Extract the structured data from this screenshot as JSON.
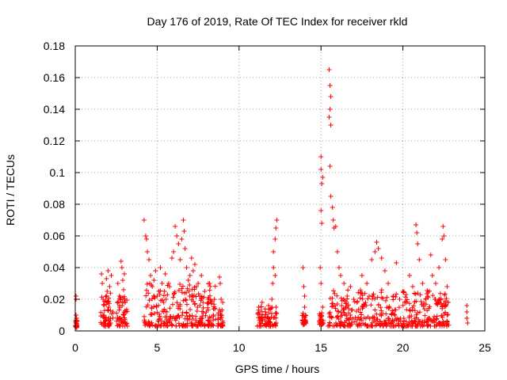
{
  "chart_data": {
    "type": "scatter",
    "title": "Day 176 of 2019, Rate Of TEC Index for receiver rkld",
    "xlabel": "GPS time / hours",
    "ylabel": "ROTI / TECUs",
    "xlim": [
      0,
      25
    ],
    "ylim": [
      0,
      0.18
    ],
    "xticks": [
      0,
      5,
      10,
      15,
      20,
      25
    ],
    "xtick_labels": [
      "0",
      "5",
      "10",
      "15",
      "20",
      "25"
    ],
    "yticks": [
      0,
      0.02,
      0.04,
      0.06,
      0.08,
      0.1,
      0.12,
      0.14,
      0.16,
      0.18
    ],
    "ytick_labels": [
      "0",
      "0.02",
      "0.04",
      "0.06",
      "0.08",
      "0.1",
      "0.12",
      "0.14",
      "0.16",
      "0.18"
    ],
    "grid": true,
    "marker": "+",
    "series": [
      {
        "name": "ROTI",
        "color": "#ff0000",
        "points": [
          [
            0.05,
            0.022
          ],
          [
            0.05,
            0.02
          ],
          [
            0.05,
            0.01
          ],
          [
            0.08,
            0.008
          ],
          [
            0.1,
            0.006
          ],
          [
            0.05,
            0.005
          ],
          [
            0.1,
            0.004
          ],
          [
            1.6,
            0.036
          ],
          [
            1.65,
            0.03
          ],
          [
            1.7,
            0.02
          ],
          [
            1.75,
            0.01
          ],
          [
            1.8,
            0.008
          ],
          [
            1.9,
            0.033
          ],
          [
            1.95,
            0.025
          ],
          [
            2.0,
            0.038
          ],
          [
            2.05,
            0.015
          ],
          [
            2.1,
            0.028
          ],
          [
            2.2,
            0.035
          ],
          [
            2.3,
            0.012
          ],
          [
            2.1,
            0.005
          ],
          [
            2.6,
            0.03
          ],
          [
            2.7,
            0.022
          ],
          [
            2.8,
            0.044
          ],
          [
            2.85,
            0.04
          ],
          [
            2.9,
            0.032
          ],
          [
            2.95,
            0.026
          ],
          [
            3.0,
            0.036
          ],
          [
            3.05,
            0.018
          ],
          [
            3.1,
            0.012
          ],
          [
            2.75,
            0.008
          ],
          [
            2.95,
            0.01
          ],
          [
            4.2,
            0.07
          ],
          [
            4.3,
            0.06
          ],
          [
            4.35,
            0.058
          ],
          [
            4.4,
            0.05
          ],
          [
            4.5,
            0.045
          ],
          [
            4.55,
            0.03
          ],
          [
            4.6,
            0.035
          ],
          [
            4.7,
            0.028
          ],
          [
            4.8,
            0.032
          ],
          [
            4.9,
            0.038
          ],
          [
            5.0,
            0.022
          ],
          [
            5.1,
            0.025
          ],
          [
            5.2,
            0.04
          ],
          [
            5.3,
            0.03
          ],
          [
            5.4,
            0.018
          ],
          [
            5.5,
            0.036
          ],
          [
            5.6,
            0.012
          ],
          [
            5.7,
            0.03
          ],
          [
            5.9,
            0.046
          ],
          [
            6.0,
            0.05
          ],
          [
            6.1,
            0.066
          ],
          [
            6.2,
            0.06
          ],
          [
            6.3,
            0.055
          ],
          [
            6.4,
            0.045
          ],
          [
            6.5,
            0.058
          ],
          [
            6.6,
            0.07
          ],
          [
            6.65,
            0.063
          ],
          [
            6.7,
            0.052
          ],
          [
            6.8,
            0.04
          ],
          [
            6.9,
            0.032
          ],
          [
            7.0,
            0.035
          ],
          [
            7.1,
            0.046
          ],
          [
            7.2,
            0.038
          ],
          [
            7.3,
            0.042
          ],
          [
            7.4,
            0.028
          ],
          [
            7.5,
            0.03
          ],
          [
            7.6,
            0.022
          ],
          [
            7.7,
            0.035
          ],
          [
            7.8,
            0.018
          ],
          [
            7.9,
            0.025
          ],
          [
            8.0,
            0.012
          ],
          [
            8.1,
            0.02
          ],
          [
            8.2,
            0.03
          ],
          [
            8.3,
            0.018
          ],
          [
            8.8,
            0.034
          ],
          [
            8.85,
            0.03
          ],
          [
            8.9,
            0.02
          ],
          [
            8.95,
            0.01
          ],
          [
            9.0,
            0.018
          ],
          [
            11.2,
            0.015
          ],
          [
            11.4,
            0.018
          ],
          [
            11.6,
            0.012
          ],
          [
            11.8,
            0.016
          ],
          [
            12.0,
            0.02
          ],
          [
            12.05,
            0.03
          ],
          [
            12.1,
            0.04
          ],
          [
            12.1,
            0.05
          ],
          [
            12.2,
            0.058
          ],
          [
            12.25,
            0.065
          ],
          [
            12.3,
            0.07
          ],
          [
            12.2,
            0.035
          ],
          [
            13.9,
            0.04
          ],
          [
            13.95,
            0.028
          ],
          [
            14.0,
            0.022
          ],
          [
            14.0,
            0.015
          ],
          [
            14.05,
            0.01
          ],
          [
            14.0,
            0.006
          ],
          [
            15.0,
            0.11
          ],
          [
            15.0,
            0.102
          ],
          [
            15.05,
            0.093
          ],
          [
            15.1,
            0.097
          ],
          [
            15.0,
            0.076
          ],
          [
            15.05,
            0.068
          ],
          [
            14.95,
            0.04
          ],
          [
            15.0,
            0.03
          ],
          [
            15.1,
            0.015
          ],
          [
            14.95,
            0.008
          ],
          [
            15.5,
            0.165
          ],
          [
            15.55,
            0.155
          ],
          [
            15.6,
            0.148
          ],
          [
            15.55,
            0.14
          ],
          [
            15.5,
            0.135
          ],
          [
            15.6,
            0.13
          ],
          [
            15.55,
            0.104
          ],
          [
            15.6,
            0.085
          ],
          [
            15.7,
            0.078
          ],
          [
            15.75,
            0.07
          ],
          [
            15.8,
            0.065
          ],
          [
            15.9,
            0.066
          ],
          [
            16.0,
            0.05
          ],
          [
            16.1,
            0.04
          ],
          [
            16.2,
            0.035
          ],
          [
            16.4,
            0.03
          ],
          [
            16.6,
            0.022
          ],
          [
            16.8,
            0.028
          ],
          [
            17.0,
            0.02
          ],
          [
            17.2,
            0.018
          ],
          [
            17.5,
            0.035
          ],
          [
            17.8,
            0.03
          ],
          [
            18.1,
            0.045
          ],
          [
            18.3,
            0.05
          ],
          [
            18.4,
            0.056
          ],
          [
            18.5,
            0.052
          ],
          [
            18.7,
            0.046
          ],
          [
            18.9,
            0.038
          ],
          [
            19.1,
            0.03
          ],
          [
            19.4,
            0.022
          ],
          [
            19.6,
            0.043
          ],
          [
            19.8,
            0.02
          ],
          [
            20.0,
            0.025
          ],
          [
            20.2,
            0.018
          ],
          [
            20.4,
            0.035
          ],
          [
            20.6,
            0.028
          ],
          [
            20.8,
            0.067
          ],
          [
            20.85,
            0.062
          ],
          [
            20.9,
            0.055
          ],
          [
            21.0,
            0.045
          ],
          [
            21.2,
            0.03
          ],
          [
            21.4,
            0.02
          ],
          [
            21.7,
            0.048
          ],
          [
            21.8,
            0.035
          ],
          [
            22.0,
            0.03
          ],
          [
            22.2,
            0.04
          ],
          [
            22.4,
            0.058
          ],
          [
            22.45,
            0.066
          ],
          [
            22.5,
            0.06
          ],
          [
            22.6,
            0.045
          ],
          [
            22.7,
            0.028
          ],
          [
            22.75,
            0.018
          ],
          [
            22.7,
            0.01
          ],
          [
            23.9,
            0.016
          ],
          [
            23.9,
            0.012
          ],
          [
            23.9,
            0.008
          ],
          [
            23.95,
            0.005
          ]
        ],
        "dense_clusters": [
          {
            "x": [
              0.0,
              0.12
            ],
            "y": [
              0.002,
              0.008
            ]
          },
          {
            "x": [
              1.55,
              2.3
            ],
            "y": [
              0.003,
              0.024
            ]
          },
          {
            "x": [
              2.5,
              3.2
            ],
            "y": [
              0.003,
              0.022
            ]
          },
          {
            "x": [
              4.2,
              8.6
            ],
            "y": [
              0.003,
              0.03
            ]
          },
          {
            "x": [
              8.7,
              9.05
            ],
            "y": [
              0.003,
              0.016
            ]
          },
          {
            "x": [
              11.1,
              12.3
            ],
            "y": [
              0.003,
              0.016
            ]
          },
          {
            "x": [
              13.85,
              14.1
            ],
            "y": [
              0.004,
              0.012
            ]
          },
          {
            "x": [
              14.9,
              15.15
            ],
            "y": [
              0.004,
              0.012
            ]
          },
          {
            "x": [
              15.4,
              22.8
            ],
            "y": [
              0.003,
              0.026
            ]
          }
        ]
      }
    ]
  }
}
